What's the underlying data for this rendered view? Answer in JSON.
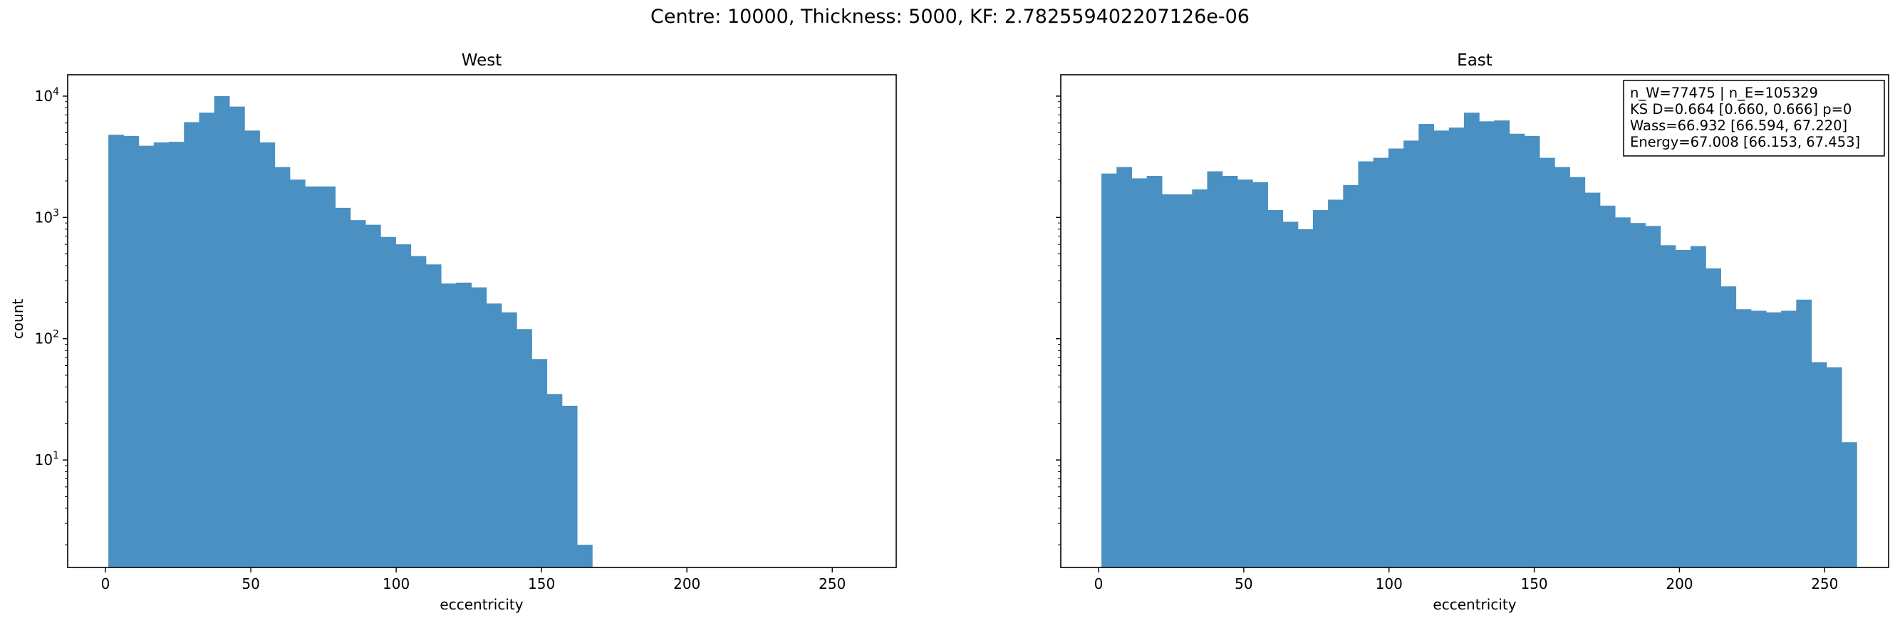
{
  "figure": {
    "suptitle": "Centre: 10000, Thickness: 5000, KF: 2.782559402207126e-06"
  },
  "chart_data": [
    {
      "type": "bar",
      "title": "West",
      "xlabel": "eccentricity",
      "ylabel": "count",
      "yscale": "log",
      "xlim": [
        -13,
        272
      ],
      "ylim": [
        1.3,
        15000
      ],
      "xticks": [
        0,
        50,
        100,
        150,
        200,
        250
      ],
      "yticks": [
        {
          "value": 10,
          "label_base": "10",
          "label_exp": "1"
        },
        {
          "value": 100,
          "label_base": "10",
          "label_exp": "2"
        },
        {
          "value": 1000,
          "label_base": "10",
          "label_exp": "3"
        },
        {
          "value": 10000,
          "label_base": "10",
          "label_exp": "4"
        }
      ],
      "bar_color": "#4a90c2",
      "bin_edges_start": 1,
      "bin_width": 5.2,
      "values": [
        4800,
        4700,
        3900,
        4150,
        4200,
        6100,
        7300,
        10000,
        8200,
        5200,
        4150,
        2600,
        2050,
        1800,
        1800,
        1200,
        950,
        870,
        690,
        600,
        480,
        410,
        285,
        290,
        265,
        195,
        165,
        120,
        68,
        35,
        28,
        2
      ]
    },
    {
      "type": "bar",
      "title": "East",
      "xlabel": "eccentricity",
      "ylabel": "",
      "yscale": "log",
      "xlim": [
        -13,
        272
      ],
      "ylim": [
        1.3,
        15000
      ],
      "xticks": [
        0,
        50,
        100,
        150,
        200,
        250
      ],
      "yticks": [],
      "bar_color": "#4a90c2",
      "bin_edges_start": 1,
      "bin_width": 5.2,
      "values": [
        2300,
        2600,
        2100,
        2200,
        1550,
        1550,
        1700,
        2400,
        2200,
        2050,
        1950,
        1150,
        920,
        800,
        1150,
        1400,
        1850,
        2900,
        3100,
        3700,
        4300,
        5900,
        5200,
        5500,
        7300,
        6200,
        6300,
        4900,
        4700,
        3100,
        2600,
        2150,
        1600,
        1250,
        1000,
        900,
        850,
        590,
        540,
        580,
        380,
        270,
        175,
        170,
        165,
        170,
        210,
        64,
        58,
        14
      ],
      "annotation": {
        "lines": [
          "n_W=77475 | n_E=105329",
          "KS D=0.664 [0.660, 0.666]  p=0",
          "Wass=66.932 [66.594, 67.220]",
          "Energy=67.008 [66.153, 67.453]"
        ]
      }
    }
  ]
}
